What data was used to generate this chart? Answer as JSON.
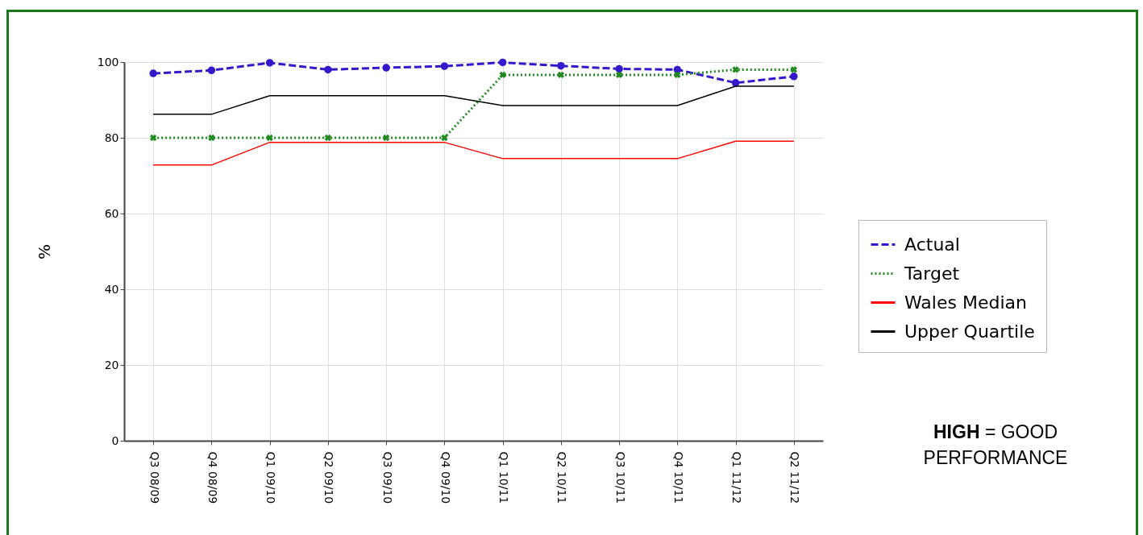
{
  "chart_data": {
    "type": "line",
    "ylabel": "%",
    "categories": [
      "Q3 08/09",
      "Q4 08/09",
      "Q1 09/10",
      "Q2 09/10",
      "Q3 09/10",
      "Q4 09/10",
      "Q1 10/11",
      "Q2 10/11",
      "Q3 10/11",
      "Q4 10/11",
      "Q1 11/12",
      "Q2 11/12"
    ],
    "series": [
      {
        "name": "Actual",
        "color": "#3319cc",
        "marker": "circle",
        "line_style": "dashed",
        "values": [
          97,
          97.8,
          99.8,
          98,
          98.5,
          98.9,
          99.9,
          99,
          98.2,
          98,
          94.5,
          96.2
        ]
      },
      {
        "name": "Target",
        "color": "#218a21",
        "marker": "cross",
        "line_style": "dotted",
        "values": [
          80,
          80,
          80,
          80,
          80,
          80,
          96.6,
          96.6,
          96.6,
          96.6,
          98,
          98
        ]
      },
      {
        "name": "Wales Median",
        "color": "#ff0000",
        "line_style": "solid",
        "values": [
          72.8,
          72.8,
          78.8,
          78.8,
          78.8,
          78.8,
          74.5,
          74.5,
          74.5,
          74.5,
          79.1,
          79.1
        ]
      },
      {
        "name": "Upper Quartile",
        "color": "#000000",
        "line_style": "solid",
        "values": [
          86.2,
          86.2,
          91.1,
          91.1,
          91.1,
          91.1,
          88.5,
          88.5,
          88.5,
          88.5,
          93.6,
          93.6
        ]
      }
    ],
    "ylim": [
      0,
      100
    ],
    "yticks": [
      0,
      20,
      40,
      60,
      80,
      100
    ],
    "grid": true,
    "legend": "right",
    "annotations": [
      "HIGH = GOOD PERFORMANCE"
    ]
  }
}
